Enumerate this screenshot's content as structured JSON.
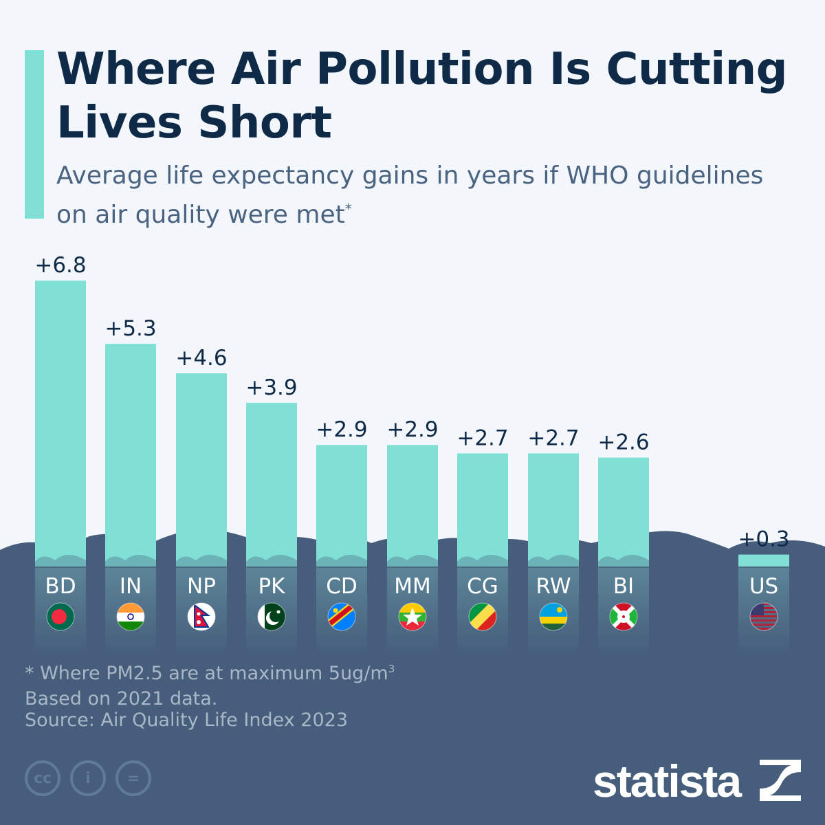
{
  "header": {
    "title": "Where Air Pollution Is Cutting Lives Short",
    "subtitle": "Average life expectancy gains in years if WHO guidelines on air quality were met",
    "subtitle_mark": "*"
  },
  "chart_data": {
    "type": "bar",
    "title": "Where Air Pollution Is Cutting Lives Short",
    "subtitle": "Average life expectancy gains in years if WHO guidelines on air quality were met",
    "categories": [
      "BD",
      "IN",
      "NP",
      "PK",
      "CD",
      "MM",
      "CG",
      "RW",
      "BI",
      "US"
    ],
    "values": [
      6.8,
      5.3,
      4.6,
      3.9,
      2.9,
      2.9,
      2.7,
      2.7,
      2.6,
      0.3
    ],
    "data_labels": [
      "+6.8",
      "+5.3",
      "+4.6",
      "+3.9",
      "+2.9",
      "+2.9",
      "+2.7",
      "+2.7",
      "+2.6",
      "+0.3"
    ],
    "flags": [
      "bangladesh-flag",
      "india-flag",
      "nepal-flag",
      "pakistan-flag",
      "dr-congo-flag",
      "myanmar-flag",
      "congo-flag",
      "rwanda-flag",
      "burundi-flag",
      "usa-flag"
    ],
    "bar_color": "#80e0d6",
    "grid": false
  },
  "footer": {
    "note": "* Where PM2.5 are at maximum 5ug/m",
    "note_sup": "3",
    "based": "Based on 2021 data.",
    "source": "Source: Air Quality Life Index 2023",
    "cc": [
      "cc",
      "i",
      "="
    ],
    "logo": "statista"
  },
  "colors": {
    "title": "#0f2a47",
    "dark": "#465e7c",
    "accent": "#80e0d6",
    "bg": "#f3f7fb"
  }
}
